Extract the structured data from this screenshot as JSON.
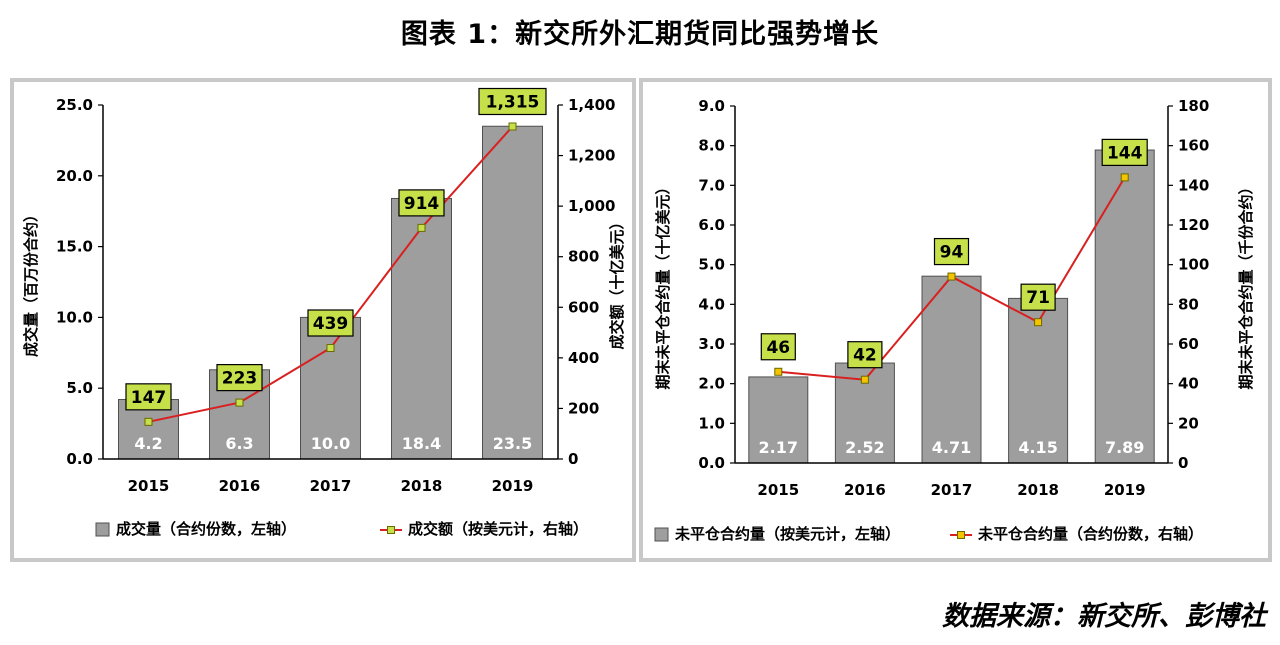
{
  "page": {
    "title": "图表 1：新交所外汇期货同比强势增长",
    "source": "数据来源：新交所、彭博社"
  },
  "colors": {
    "bar": "#9e9e9e",
    "bar_edge": "#505050",
    "line": "#d92020",
    "label_box": "#c6e04a",
    "marker_left": "#c6e04a",
    "marker_right": "#f5c400"
  },
  "chart_data": [
    {
      "type": "bar",
      "categories": [
        "2015",
        "2016",
        "2017",
        "2018",
        "2019"
      ],
      "ylabel": "成交量（百万份合约）",
      "ylim": [
        0,
        25
      ],
      "yticks": [
        "0.0",
        "5.0",
        "10.0",
        "15.0",
        "20.0",
        "25.0"
      ],
      "y2label": "成交额（十亿美元）",
      "y2lim": [
        0,
        1400
      ],
      "y2ticks": [
        "0",
        "200",
        "400",
        "600",
        "800",
        "1,000",
        "1,200",
        "1,400"
      ],
      "series": [
        {
          "name": "成交量（合约份数，左轴）",
          "kind": "bar",
          "axis": "left",
          "values": [
            4.2,
            6.3,
            10.0,
            18.4,
            23.5
          ],
          "labels": [
            "4.2",
            "6.3",
            "10.0",
            "18.4",
            "23.5"
          ]
        },
        {
          "name": "成交额（按美元计，右轴）",
          "kind": "line",
          "axis": "right",
          "values": [
            147,
            223,
            439,
            914,
            1315
          ],
          "labels": [
            "147",
            "223",
            "439",
            "914",
            "1,315"
          ]
        }
      ],
      "legend": "bottom"
    },
    {
      "type": "bar",
      "categories": [
        "2015",
        "2016",
        "2017",
        "2018",
        "2019"
      ],
      "ylabel": "期末未平仓合约量（十亿美元）",
      "ylim": [
        0,
        9
      ],
      "yticks": [
        "0.0",
        "1.0",
        "2.0",
        "3.0",
        "4.0",
        "5.0",
        "6.0",
        "7.0",
        "8.0",
        "9.0"
      ],
      "y2label": "期末未平仓合约量（千份合约）",
      "y2lim": [
        0,
        180
      ],
      "y2ticks": [
        "0",
        "20",
        "40",
        "60",
        "80",
        "100",
        "120",
        "140",
        "160",
        "180"
      ],
      "series": [
        {
          "name": "未平仓合约量（按美元计，左轴）",
          "kind": "bar",
          "axis": "left",
          "values": [
            2.17,
            2.52,
            4.71,
            4.15,
            7.89
          ],
          "labels": [
            "2.17",
            "2.52",
            "4.71",
            "4.15",
            "7.89"
          ]
        },
        {
          "name": "未平仓合约量（合约份数，右轴）",
          "kind": "line",
          "axis": "right",
          "values": [
            46,
            42,
            94,
            71,
            144
          ],
          "labels": [
            "46",
            "42",
            "94",
            "71",
            "144"
          ]
        }
      ],
      "legend": "bottom"
    }
  ]
}
